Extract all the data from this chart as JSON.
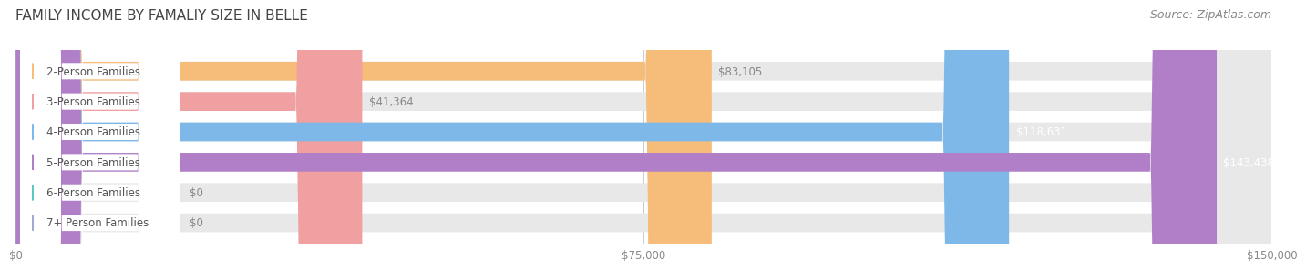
{
  "title": "FAMILY INCOME BY FAMALIY SIZE IN BELLE",
  "source": "Source: ZipAtlas.com",
  "categories": [
    "2-Person Families",
    "3-Person Families",
    "4-Person Families",
    "5-Person Families",
    "6-Person Families",
    "7+ Person Families"
  ],
  "values": [
    83105,
    41364,
    118631,
    143438,
    0,
    0
  ],
  "bar_colors": [
    "#f5bc7a",
    "#f0a0a0",
    "#7eb8e8",
    "#b07fc8",
    "#5ec8c0",
    "#a0a8d8"
  ],
  "max_value": 150000,
  "label_colors": [
    "#888888",
    "#888888",
    "#ffffff",
    "#ffffff",
    "#888888",
    "#888888"
  ],
  "value_labels": [
    "$83,105",
    "$41,364",
    "$118,631",
    "$143,438",
    "$0",
    "$0"
  ],
  "xticks": [
    0,
    75000,
    150000
  ],
  "xtick_labels": [
    "$0",
    "$75,000",
    "$150,000"
  ],
  "bar_bg_color": "#e8e8e8",
  "title_fontsize": 11,
  "source_fontsize": 9,
  "bar_label_fontsize": 8.5,
  "value_label_fontsize": 8.5,
  "figsize": [
    14.06,
    3.05
  ],
  "dpi": 100
}
